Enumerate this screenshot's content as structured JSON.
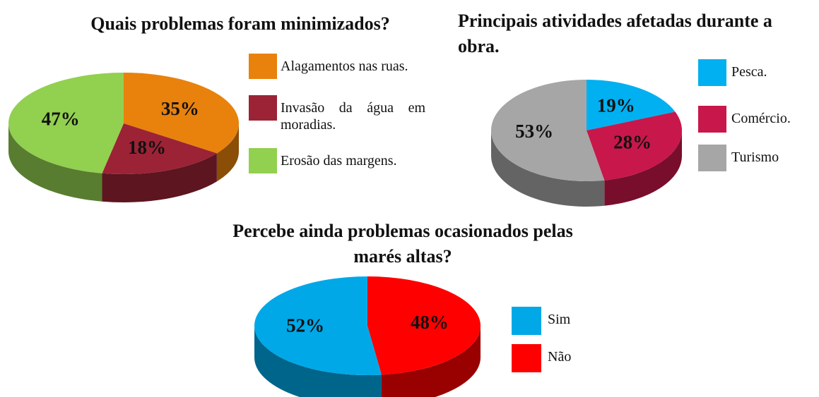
{
  "chart_data": [
    {
      "type": "pie",
      "title": "Quais problemas foram minimizados?",
      "series": [
        {
          "name": "Alagamentos nas ruas.",
          "color": "#E8820C",
          "values": [
            35
          ],
          "value_labels": [
            "35%"
          ]
        },
        {
          "name": "Invasão da água em moradias.",
          "color": "#9B2335",
          "values": [
            18
          ],
          "value_labels": [
            "18%"
          ]
        },
        {
          "name": "Erosão das margens.",
          "color": "#92D050",
          "values": [
            47
          ],
          "value_labels": [
            "47%"
          ]
        }
      ]
    },
    {
      "type": "pie",
      "title": "Principais atividades afetadas durante a obra.",
      "series": [
        {
          "name": "Pesca.",
          "color": "#00B0F0",
          "values": [
            19
          ],
          "value_labels": [
            "19%"
          ]
        },
        {
          "name": "Comércio.",
          "color": "#C8174A",
          "values": [
            28
          ],
          "value_labels": [
            "28%"
          ]
        },
        {
          "name": "Turismo",
          "color": "#A6A6A6",
          "values": [
            53
          ],
          "value_labels": [
            "53%"
          ]
        }
      ]
    },
    {
      "type": "pie",
      "title": "Percebe ainda problemas ocasionados pelas marés altas?",
      "series": [
        {
          "name": "Sim",
          "color": "#00A8E8",
          "values": [
            52
          ],
          "value_labels": [
            "52%"
          ]
        },
        {
          "name": "Não",
          "color": "#FF0000",
          "values": [
            48
          ],
          "value_labels": [
            "48%"
          ]
        }
      ]
    }
  ]
}
